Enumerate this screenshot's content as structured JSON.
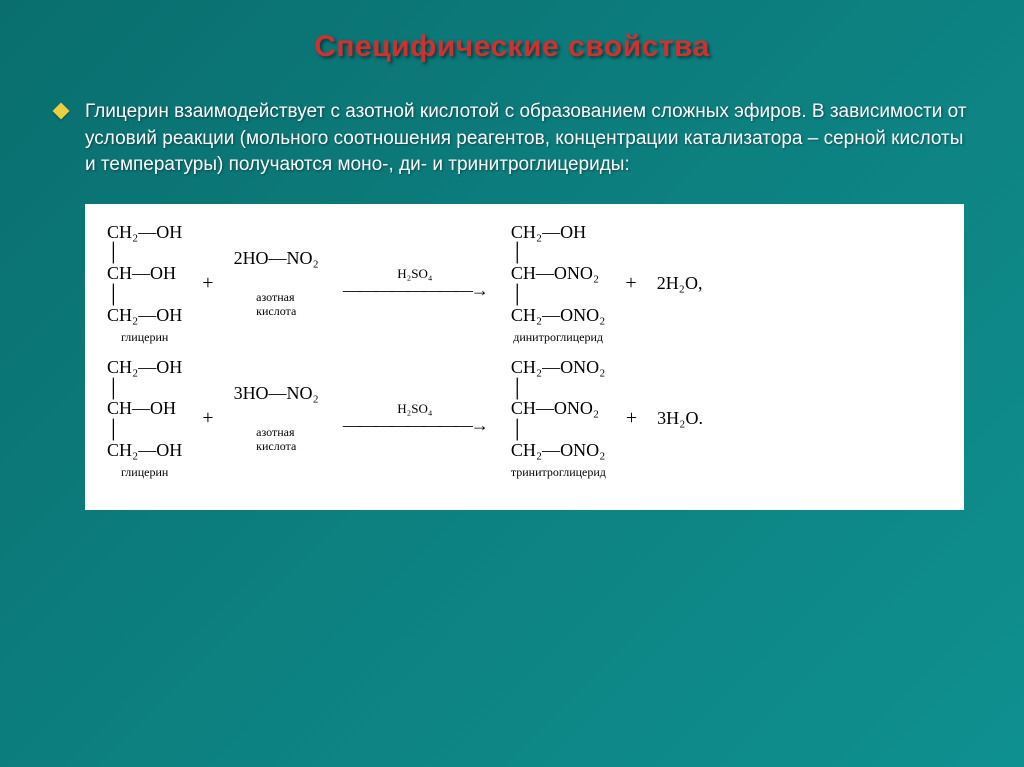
{
  "title": "Специфические свойства",
  "body": "Глицерин взаимодействует с азотной кислотой с образованием сложных эфиров. В зависимости от условий реакции (мольного соотношения реагентов, концентрации катализатора – серной кислоты и температуры) получаются моно-, ди- и тринитроглицериды:",
  "reactions": {
    "r1": {
      "reactant1": {
        "l1": "CH₂—OH",
        "l2": "│",
        "l3": "CH—OH",
        "l4": "│",
        "l5": "CH₂—OH",
        "label": "глицерин"
      },
      "plus1": "+",
      "reagent": {
        "formula": "2HO—NO₂",
        "label": "азотная\nкислота"
      },
      "catalyst": "H₂SO₄",
      "arrow": "————————→",
      "product": {
        "l1": "CH₂—OH",
        "l2": "│",
        "l3": "CH—ONO₂",
        "l4": "│",
        "l5": "CH₂—ONO₂",
        "label": "динитроглицерид"
      },
      "plus2": "+",
      "water": "2H₂O,"
    },
    "r2": {
      "reactant1": {
        "l1": "CH₂—OH",
        "l2": "│",
        "l3": "CH—OH",
        "l4": "│",
        "l5": "CH₂—OH",
        "label": "глицерин"
      },
      "plus1": "+",
      "reagent": {
        "formula": "3HO—NO₂",
        "label": "азотная\nкислота"
      },
      "catalyst": "H₂SO₄",
      "arrow": "————————→",
      "product": {
        "l1": "CH₂—ONO₂",
        "l2": "│",
        "l3": "CH—ONO₂",
        "l4": "│",
        "l5": "CH₂—ONO₂",
        "label": "тринитроглицерид"
      },
      "plus2": "+",
      "water": "3H₂O."
    }
  },
  "colors": {
    "title": "#d03030",
    "body_text": "#ffffff",
    "bullet": "#e8d040",
    "reaction_bg": "#ffffff",
    "reaction_text": "#000000",
    "bg_gradient_start": "#0a6e6e",
    "bg_gradient_end": "#0f9090"
  },
  "fontsizes": {
    "title": 30,
    "body": 19,
    "formula": 18,
    "label": 12,
    "catalyst": 13
  }
}
